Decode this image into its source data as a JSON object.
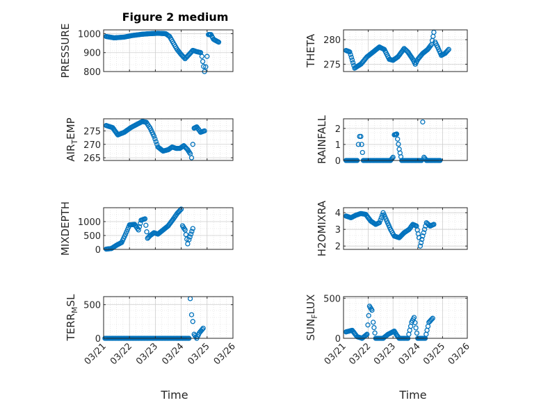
{
  "figure": {
    "title": "Figure 2 medium",
    "xlabel": "Time",
    "xticklabels": [
      "03/21",
      "03/22",
      "03/23",
      "03/24",
      "03/25",
      "03/26"
    ],
    "marker_color": "#0072BD",
    "marker": "circle"
  },
  "chart_data": [
    {
      "type": "scatter",
      "id": "pressure",
      "ylabel": "PRESSURE",
      "grid": true,
      "ylim": [
        800,
        1020
      ],
      "yticks": [
        800,
        900,
        1000
      ],
      "anchors": [
        [
          0.1,
          985
        ],
        [
          0.4,
          978
        ],
        [
          0.8,
          982
        ],
        [
          1.1,
          990
        ],
        [
          1.5,
          997
        ],
        [
          1.8,
          1000
        ],
        [
          2.1,
          1002
        ],
        [
          2.4,
          1000
        ],
        [
          2.55,
          985
        ],
        [
          2.7,
          950
        ],
        [
          2.85,
          915
        ],
        [
          3.0,
          890
        ],
        [
          3.15,
          868
        ],
        [
          3.3,
          890
        ],
        [
          3.45,
          912
        ],
        [
          3.6,
          905
        ],
        [
          3.75,
          900
        ],
        [
          3.8,
          880
        ],
        [
          3.9,
          800
        ],
        [
          3.95,
          825
        ],
        [
          4.0,
          880
        ],
        [
          4.05,
          995
        ],
        [
          4.15,
          995
        ],
        [
          4.25,
          970
        ],
        [
          4.45,
          955
        ]
      ]
    },
    {
      "type": "scatter",
      "id": "theta",
      "ylabel": "THETA",
      "grid": true,
      "ylim": [
        273.5,
        282
      ],
      "yticks": [
        275,
        280
      ],
      "anchors": [
        [
          0.1,
          277.8
        ],
        [
          0.25,
          277.5
        ],
        [
          0.45,
          274.2
        ],
        [
          0.7,
          275
        ],
        [
          0.95,
          276.5
        ],
        [
          1.2,
          277.5
        ],
        [
          1.45,
          278.5
        ],
        [
          1.65,
          278
        ],
        [
          1.85,
          276
        ],
        [
          2.0,
          275.8
        ],
        [
          2.2,
          276.5
        ],
        [
          2.45,
          278.2
        ],
        [
          2.6,
          277.5
        ],
        [
          2.8,
          276
        ],
        [
          2.9,
          275
        ],
        [
          3.0,
          276
        ],
        [
          3.2,
          277.2
        ],
        [
          3.4,
          278
        ],
        [
          3.55,
          279
        ],
        [
          3.65,
          281.5
        ],
        [
          3.7,
          279.5
        ],
        [
          3.8,
          278.5
        ],
        [
          3.95,
          276.8
        ],
        [
          4.1,
          277.2
        ],
        [
          4.25,
          278
        ]
      ]
    },
    {
      "type": "scatter",
      "id": "air_temp",
      "ylabel": "AIR_TEMP",
      "grid": true,
      "ylim": [
        264,
        279.5
      ],
      "yticks": [
        265,
        270,
        275
      ],
      "anchors": [
        [
          0.1,
          277
        ],
        [
          0.35,
          276.2
        ],
        [
          0.55,
          273.5
        ],
        [
          0.8,
          274.5
        ],
        [
          1.05,
          276.2
        ],
        [
          1.3,
          277.5
        ],
        [
          1.5,
          278.5
        ],
        [
          1.65,
          278.2
        ],
        [
          1.8,
          276
        ],
        [
          1.95,
          273
        ],
        [
          2.1,
          269
        ],
        [
          2.3,
          267.5
        ],
        [
          2.5,
          268
        ],
        [
          2.65,
          269
        ],
        [
          2.8,
          268.5
        ],
        [
          2.95,
          268.5
        ],
        [
          3.1,
          269.5
        ],
        [
          3.25,
          268
        ],
        [
          3.35,
          266.5
        ],
        [
          3.4,
          265
        ],
        [
          3.45,
          270
        ],
        [
          3.5,
          276
        ],
        [
          3.6,
          276.5
        ],
        [
          3.75,
          274.5
        ],
        [
          3.9,
          275
        ]
      ]
    },
    {
      "type": "scatter",
      "id": "rainfall",
      "ylabel": "RAINFALL",
      "grid": true,
      "ylim": [
        0,
        2.6
      ],
      "yticks": [
        0,
        1,
        2
      ],
      "anchors": [
        [
          0.1,
          0
        ],
        [
          0.55,
          0
        ],
        [
          0.6,
          1
        ],
        [
          0.65,
          1.5
        ],
        [
          0.7,
          1.5
        ],
        [
          0.8,
          0
        ],
        [
          1.9,
          0
        ],
        [
          2.0,
          0.2
        ],
        [
          2.05,
          1.6
        ],
        [
          2.15,
          1.65
        ],
        [
          2.25,
          0.7
        ],
        [
          2.35,
          0
        ],
        [
          3.15,
          0
        ],
        [
          3.2,
          2.4
        ],
        [
          3.25,
          0.2
        ],
        [
          3.35,
          0
        ],
        [
          3.9,
          0
        ]
      ]
    },
    {
      "type": "scatter",
      "id": "mixdepth",
      "ylabel": "MIXDEPTH",
      "grid": true,
      "ylim": [
        0,
        1500
      ],
      "yticks": [
        0,
        500,
        1000
      ],
      "anchors": [
        [
          0.1,
          10
        ],
        [
          0.3,
          30
        ],
        [
          0.5,
          150
        ],
        [
          0.7,
          250
        ],
        [
          0.85,
          550
        ],
        [
          1.0,
          880
        ],
        [
          1.2,
          900
        ],
        [
          1.35,
          700
        ],
        [
          1.45,
          1050
        ],
        [
          1.6,
          1100
        ],
        [
          1.7,
          400
        ],
        [
          1.8,
          500
        ],
        [
          1.95,
          600
        ],
        [
          2.1,
          550
        ],
        [
          2.3,
          700
        ],
        [
          2.5,
          850
        ],
        [
          2.7,
          1100
        ],
        [
          2.85,
          1300
        ],
        [
          3.0,
          1450
        ],
        [
          3.05,
          850
        ],
        [
          3.15,
          700
        ],
        [
          3.25,
          200
        ],
        [
          3.3,
          350
        ],
        [
          3.45,
          750
        ]
      ]
    },
    {
      "type": "scatter",
      "id": "h2omixra",
      "ylabel": "H2OMIXRA",
      "grid": true,
      "ylim": [
        1.8,
        4.3
      ],
      "yticks": [
        2,
        3,
        4
      ],
      "anchors": [
        [
          0.1,
          3.8
        ],
        [
          0.3,
          3.7
        ],
        [
          0.5,
          3.85
        ],
        [
          0.7,
          3.95
        ],
        [
          0.9,
          3.9
        ],
        [
          1.1,
          3.5
        ],
        [
          1.3,
          3.3
        ],
        [
          1.45,
          3.4
        ],
        [
          1.6,
          4.0
        ],
        [
          1.75,
          3.5
        ],
        [
          1.9,
          3.0
        ],
        [
          2.05,
          2.6
        ],
        [
          2.25,
          2.5
        ],
        [
          2.45,
          2.8
        ],
        [
          2.65,
          3.0
        ],
        [
          2.8,
          3.3
        ],
        [
          2.95,
          3.2
        ],
        [
          3.05,
          2.5
        ],
        [
          3.1,
          2.0
        ],
        [
          3.2,
          2.6
        ],
        [
          3.35,
          3.4
        ],
        [
          3.5,
          3.2
        ],
        [
          3.65,
          3.3
        ]
      ]
    },
    {
      "type": "scatter",
      "id": "terr_msl",
      "ylabel": "TERR_MSL",
      "grid": true,
      "ylim": [
        0,
        620
      ],
      "yticks": [
        0,
        500
      ],
      "anchors": [
        [
          0.05,
          0
        ],
        [
          1.5,
          0
        ],
        [
          3.05,
          0
        ],
        [
          3.3,
          0
        ],
        [
          3.35,
          590
        ],
        [
          3.4,
          350
        ],
        [
          3.45,
          250
        ],
        [
          3.5,
          60
        ],
        [
          3.6,
          0
        ],
        [
          3.7,
          80
        ],
        [
          3.85,
          150
        ]
      ]
    },
    {
      "type": "scatter",
      "id": "sun_flux",
      "ylabel": "SUN_FLUX",
      "grid": true,
      "ylim": [
        0,
        520
      ],
      "yticks": [
        0,
        500
      ],
      "anchors": [
        [
          0.1,
          80
        ],
        [
          0.35,
          100
        ],
        [
          0.55,
          20
        ],
        [
          0.75,
          0
        ],
        [
          0.95,
          50
        ],
        [
          1.05,
          400
        ],
        [
          1.15,
          350
        ],
        [
          1.2,
          200
        ],
        [
          1.3,
          0
        ],
        [
          1.6,
          0
        ],
        [
          1.8,
          50
        ],
        [
          2.05,
          90
        ],
        [
          2.15,
          40
        ],
        [
          2.25,
          0
        ],
        [
          2.6,
          0
        ],
        [
          2.75,
          200
        ],
        [
          2.85,
          260
        ],
        [
          3.0,
          0
        ],
        [
          3.3,
          0
        ],
        [
          3.45,
          200
        ],
        [
          3.6,
          250
        ]
      ]
    }
  ]
}
